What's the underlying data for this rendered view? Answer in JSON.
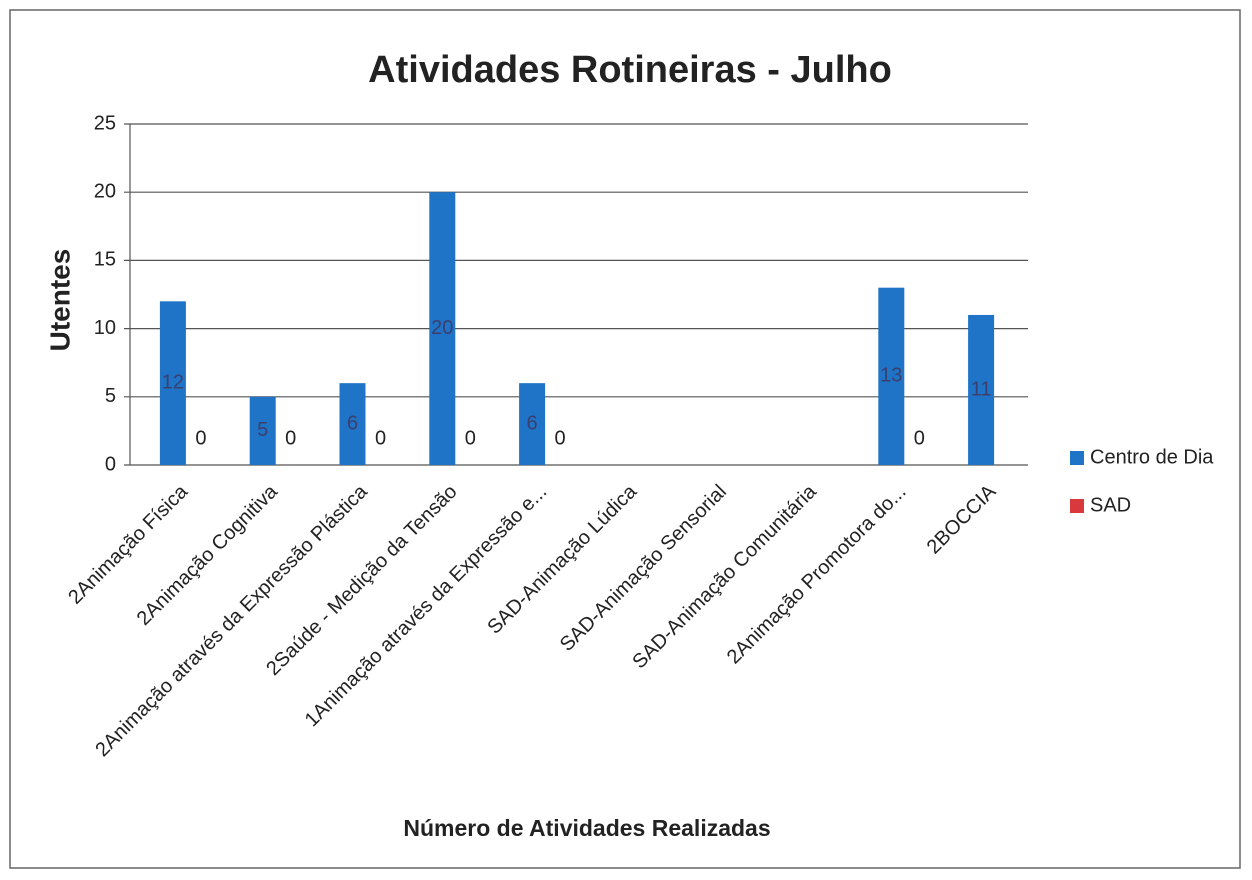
{
  "chart_data": {
    "type": "bar",
    "title": "Atividades Rotineiras - Julho",
    "x_label": "Número de Atividades Realizadas",
    "y_label": "Utentes",
    "categories": [
      "2Animação Física",
      "2Animação Cognitiva",
      "2Animação através da Expressão Plástica",
      "2Saúde - Medição da Tensão",
      "1Animação através da Expressão e...",
      "SAD-Animação Lúdica",
      "SAD-Animação Sensorial",
      "SAD-Animação Comunitária",
      "2Animação Promotora do...",
      "2BOCCIA"
    ],
    "series": [
      {
        "name": "Centro de Dia",
        "color": "#1f74c8",
        "values": [
          12,
          5,
          6,
          20,
          6,
          null,
          null,
          null,
          13,
          11
        ]
      },
      {
        "name": "SAD",
        "color": "#d9383c",
        "values": [
          0,
          0,
          0,
          0,
          0,
          null,
          null,
          null,
          0,
          null
        ]
      }
    ],
    "ylim": [
      0,
      25
    ],
    "yticks": [
      0,
      5,
      10,
      15,
      20,
      25
    ],
    "grid": true,
    "legend": "right",
    "data_labels": true
  }
}
